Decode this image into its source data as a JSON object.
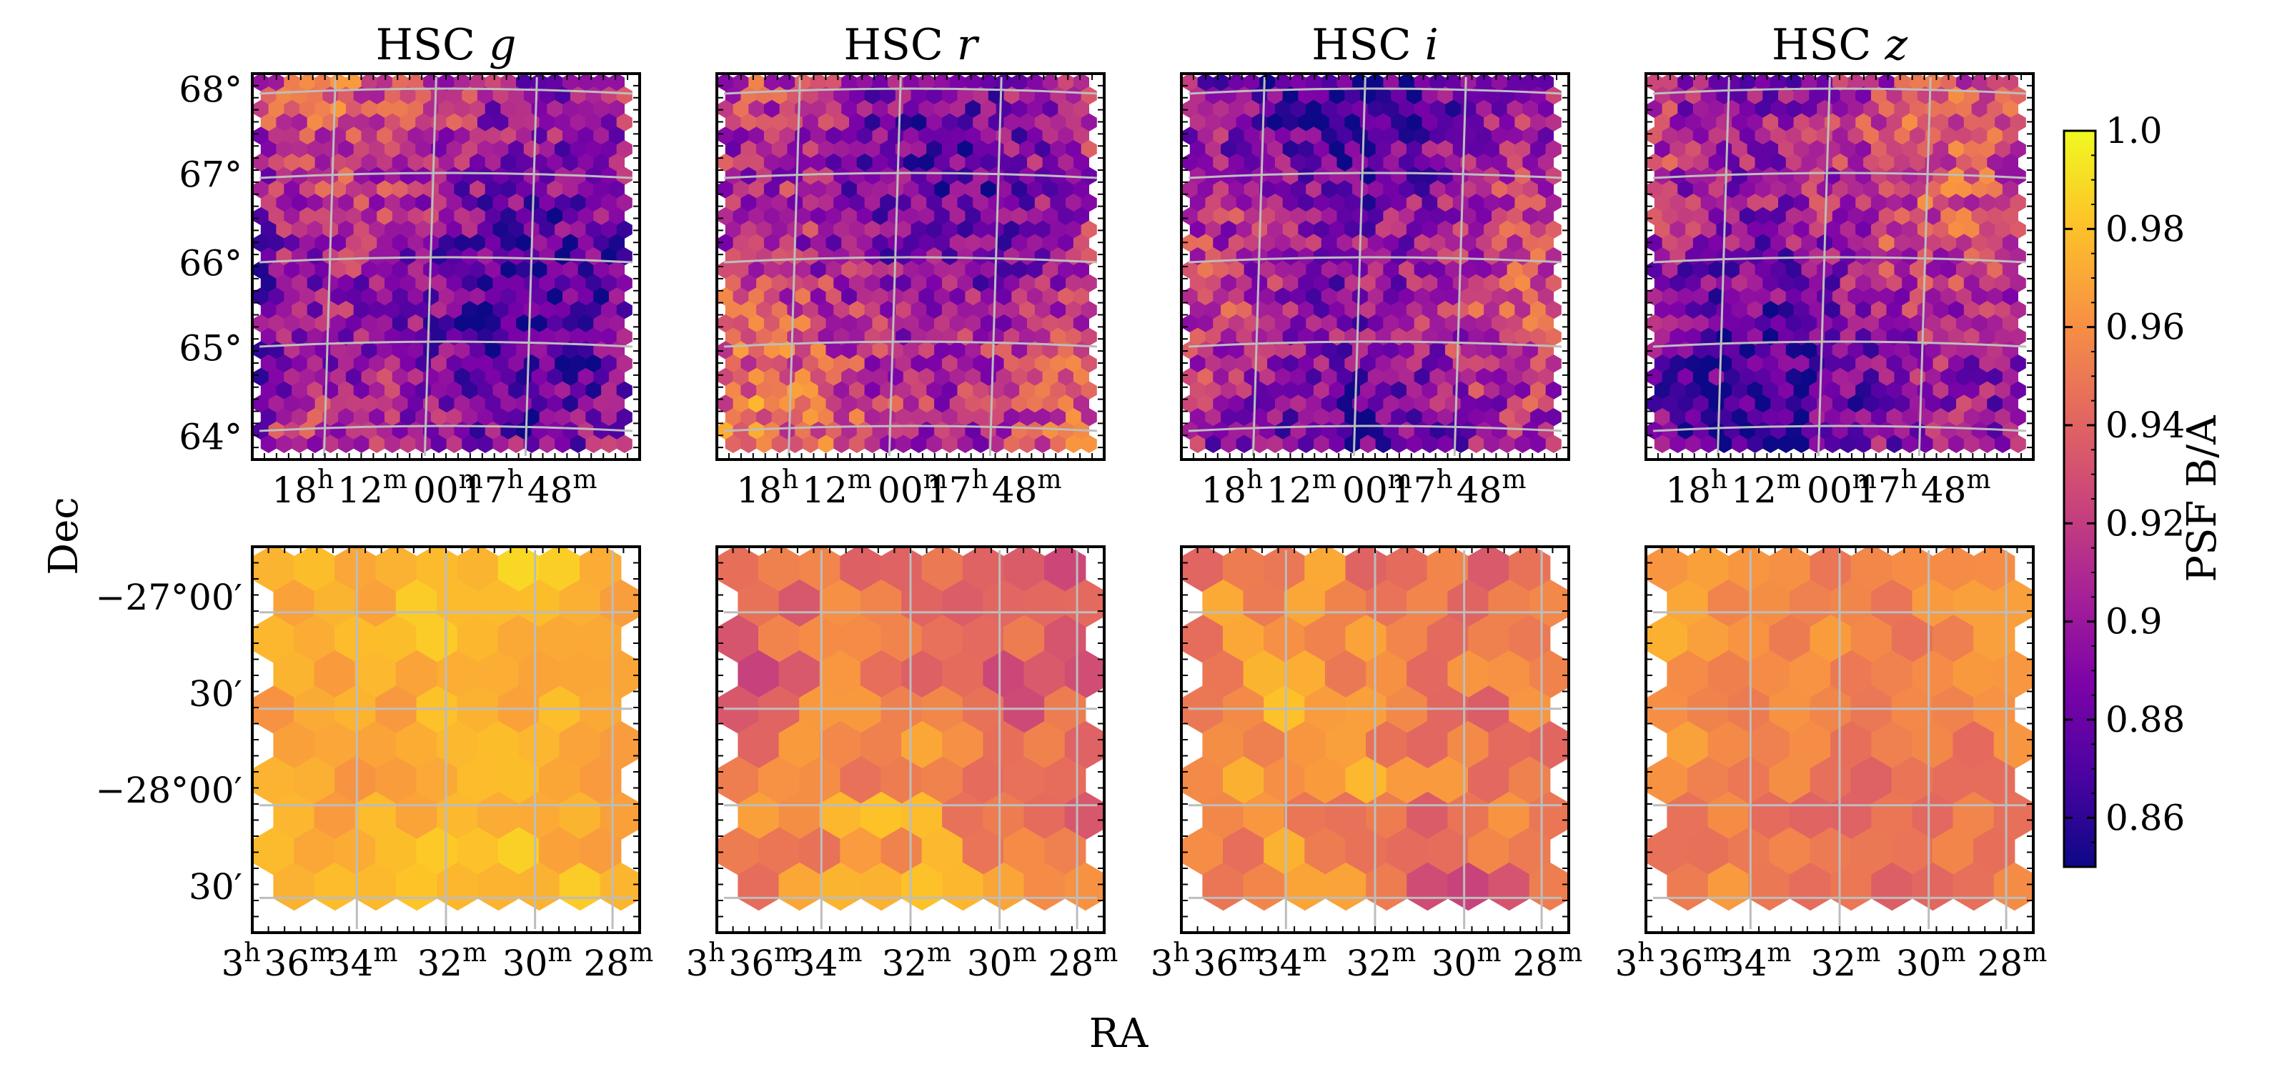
{
  "chart_data": {
    "type": "heatmap",
    "description_axes": {
      "xlabel": "RA",
      "ylabel": "Dec"
    },
    "colorbar": {
      "label": "PSF B/A",
      "colormap": "plasma",
      "vmin": 0.85,
      "vmax": 1.0,
      "ticks": [
        "1.0",
        "0.98",
        "0.96",
        "0.94",
        "0.92",
        "0.9",
        "0.88",
        "0.86"
      ],
      "tick_values": [
        1.0,
        0.98,
        0.96,
        0.94,
        0.92,
        0.9,
        0.88,
        0.86
      ]
    },
    "panels": [
      {
        "title": "HSC g",
        "band_prefix": "HSC ",
        "band": "g",
        "row": "top",
        "xticks": [
          "18h12m",
          "00m",
          "17h48m"
        ],
        "yticks": [
          "68°",
          "67°",
          "66°",
          "65°",
          "64°"
        ],
        "approx_mean": 0.9,
        "approx_spread": 0.05
      },
      {
        "title": "HSC r",
        "band_prefix": "HSC ",
        "band": "r",
        "row": "top",
        "xticks": [
          "18h12m",
          "00m",
          "17h48m"
        ],
        "approx_mean": 0.91,
        "approx_spread": 0.05
      },
      {
        "title": "HSC i",
        "band_prefix": "HSC ",
        "band": "i",
        "row": "top",
        "xticks": [
          "18h12m",
          "00m",
          "17h48m"
        ],
        "approx_mean": 0.895,
        "approx_spread": 0.05
      },
      {
        "title": "HSC z",
        "band_prefix": "HSC ",
        "band": "z",
        "row": "top",
        "xticks": [
          "18h12m",
          "00m",
          "17h48m"
        ],
        "approx_mean": 0.9,
        "approx_spread": 0.05
      },
      {
        "title": "",
        "band": "g",
        "row": "bottom",
        "xticks": [
          "3h36m",
          "34m",
          "32m",
          "30m",
          "28m"
        ],
        "yticks": [
          "−27°00′",
          "30′",
          "−28°00′",
          "30′"
        ],
        "approx_mean": 0.975,
        "approx_spread": 0.012
      },
      {
        "title": "",
        "band": "r",
        "row": "bottom",
        "xticks": [
          "3h36m",
          "34m",
          "32m",
          "30m",
          "28m"
        ],
        "approx_mean": 0.95,
        "approx_spread": 0.025
      },
      {
        "title": "",
        "band": "i",
        "row": "bottom",
        "xticks": [
          "3h36m",
          "34m",
          "32m",
          "30m",
          "28m"
        ],
        "approx_mean": 0.952,
        "approx_spread": 0.025
      },
      {
        "title": "",
        "band": "z",
        "row": "bottom",
        "xticks": [
          "3h36m",
          "34m",
          "32m",
          "30m",
          "28m"
        ],
        "approx_mean": 0.955,
        "approx_spread": 0.015
      }
    ]
  }
}
